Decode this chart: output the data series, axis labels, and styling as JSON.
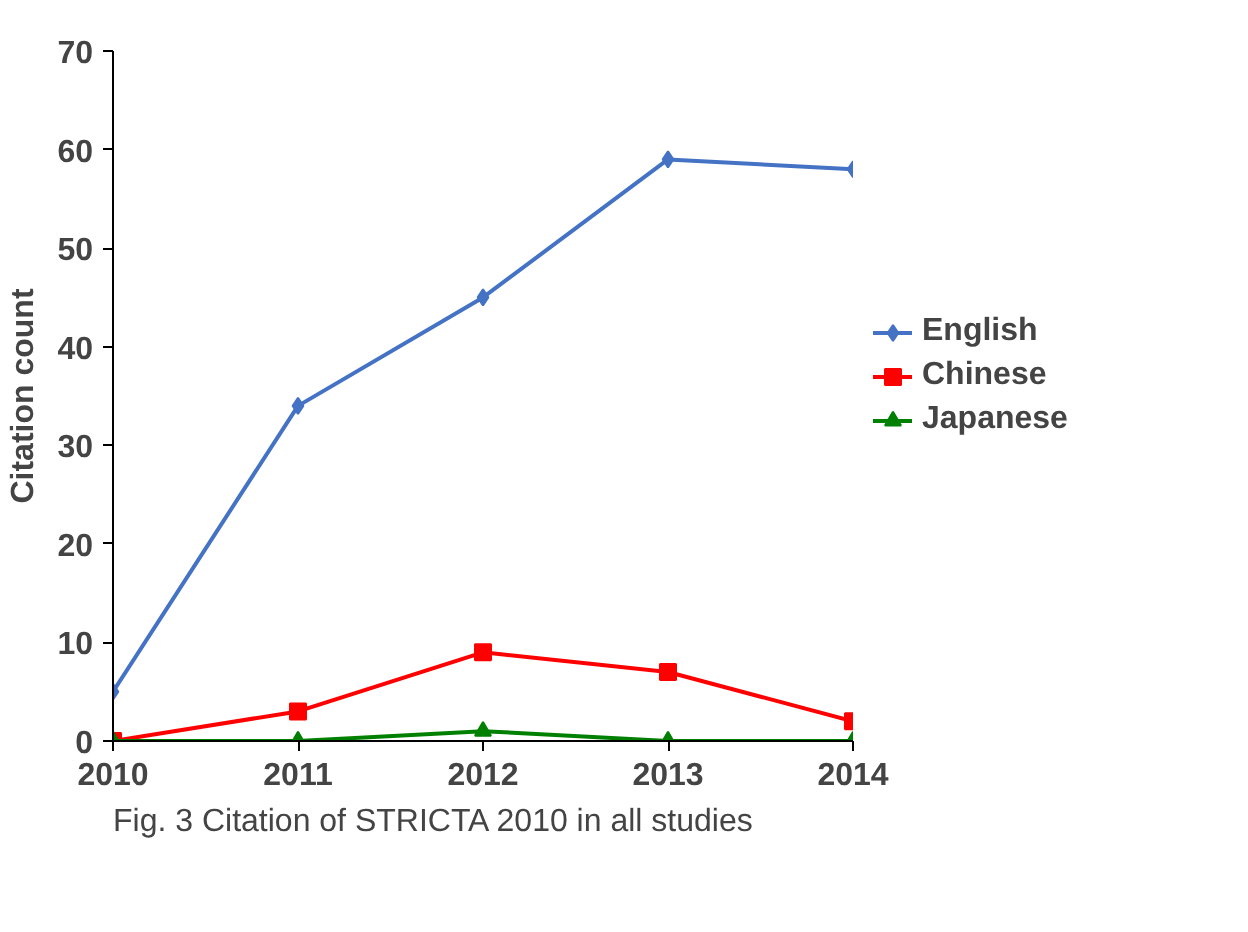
{
  "chart_data": {
    "type": "line",
    "ylabel": "Citation count",
    "x": [
      2010,
      2011,
      2012,
      2013,
      2014
    ],
    "series": [
      {
        "name": "English",
        "color": "#4472c4",
        "marker": "diamond",
        "values": [
          5,
          34,
          45,
          59,
          58
        ]
      },
      {
        "name": "Chinese",
        "color": "#ff0000",
        "marker": "square",
        "values": [
          0,
          3,
          9,
          7,
          2
        ]
      },
      {
        "name": "Japanese",
        "color": "#008000",
        "marker": "triangle",
        "values": [
          0,
          0,
          1,
          0,
          0
        ]
      }
    ],
    "xlim": [
      2010,
      2014
    ],
    "xticks": [
      2010,
      2011,
      2012,
      2013,
      2014
    ],
    "ylim": [
      0,
      70
    ],
    "yticks": [
      0,
      10,
      20,
      30,
      40,
      50,
      60,
      70
    ],
    "grid": false,
    "legend": "right",
    "annotations": [
      "Fig. 3 Citation of STRICTA 2010 in all studies"
    ]
  }
}
